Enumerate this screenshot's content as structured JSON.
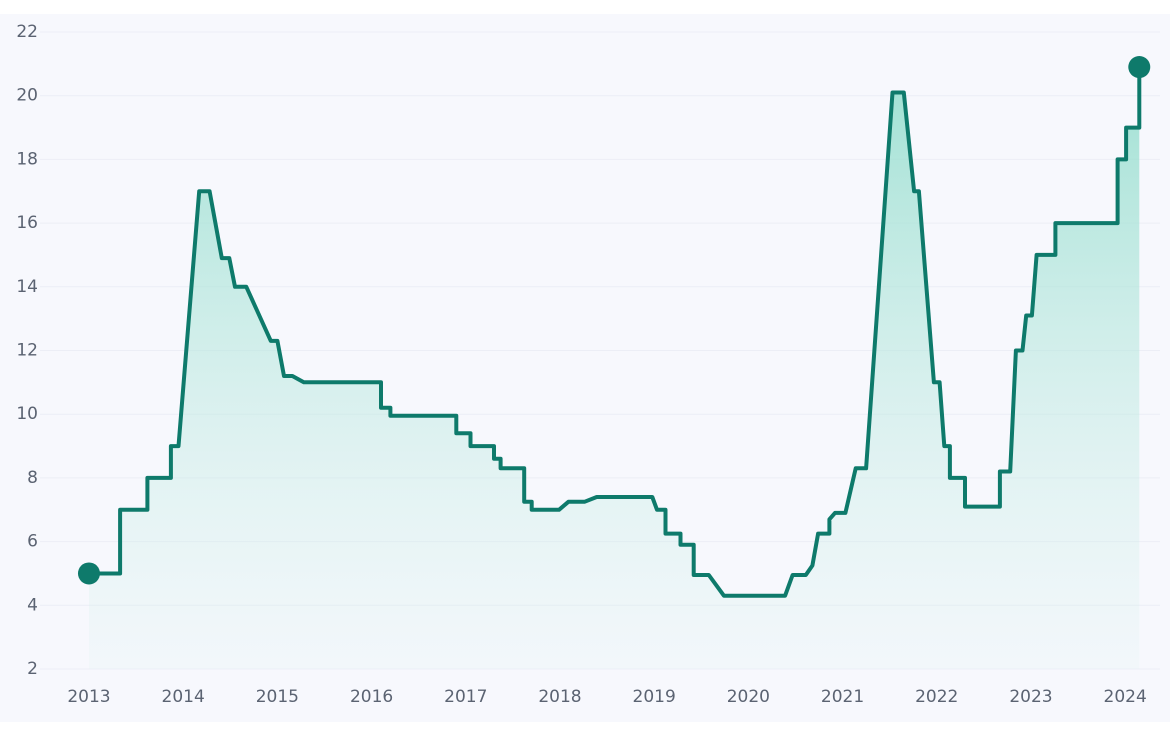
{
  "chart_data": {
    "type": "line",
    "x": [
      2013.0,
      2013.33,
      2013.33,
      2013.62,
      2013.62,
      2013.87,
      2013.87,
      2013.95,
      2014.17,
      2014.28,
      2014.41,
      2014.49,
      2014.55,
      2014.67,
      2014.93,
      2015.0,
      2015.07,
      2015.16,
      2015.28,
      2016.1,
      2016.1,
      2016.2,
      2016.2,
      2016.9,
      2016.9,
      2017.05,
      2017.05,
      2017.3,
      2017.3,
      2017.37,
      2017.37,
      2017.62,
      2017.62,
      2017.7,
      2017.7,
      2017.99,
      2018.09,
      2018.26,
      2018.39,
      2018.98,
      2019.03,
      2019.12,
      2019.12,
      2019.28,
      2019.28,
      2019.42,
      2019.42,
      2019.58,
      2019.74,
      2020.39,
      2020.47,
      2020.61,
      2020.68,
      2020.74,
      2020.86,
      2020.86,
      2020.92,
      2021.03,
      2021.14,
      2021.25,
      2021.53,
      2021.65,
      2021.76,
      2021.81,
      2021.97,
      2022.03,
      2022.08,
      2022.14,
      2022.14,
      2022.3,
      2022.3,
      2022.67,
      2022.67,
      2022.78,
      2022.84,
      2022.91,
      2022.95,
      2023.01,
      2023.06,
      2023.26,
      2023.26,
      2023.92,
      2023.92,
      2024.01,
      2024.01,
      2024.15,
      2024.15
    ],
    "series": [
      {
        "color": "#0e7a6b",
        "values": [
          5.0,
          5.0,
          7.0,
          7.0,
          8.0,
          8.0,
          9.0,
          9.0,
          17.0,
          17.0,
          14.9,
          14.9,
          14.0,
          14.0,
          12.3,
          12.3,
          11.2,
          11.2,
          11.0,
          11.0,
          10.2,
          10.2,
          9.95,
          9.95,
          9.4,
          9.4,
          9.0,
          9.0,
          8.6,
          8.6,
          8.3,
          8.3,
          7.25,
          7.25,
          7.0,
          7.0,
          7.25,
          7.25,
          7.4,
          7.4,
          7.0,
          7.0,
          6.25,
          6.25,
          5.9,
          5.9,
          4.95,
          4.95,
          4.3,
          4.3,
          4.95,
          4.95,
          5.25,
          6.25,
          6.25,
          6.7,
          6.9,
          6.9,
          8.3,
          8.3,
          20.1,
          20.1,
          17.0,
          17.0,
          11.0,
          11.0,
          9.0,
          9.0,
          8.0,
          8.0,
          7.1,
          7.1,
          8.2,
          8.2,
          12.0,
          12.0,
          13.1,
          13.1,
          15.0,
          15.0,
          16.0,
          16.0,
          18.0,
          18.0,
          19.0,
          19.0,
          20.9
        ]
      }
    ],
    "xlim": [
      2012.48,
      2024.37
    ],
    "xticks": [
      2013,
      2014,
      2015,
      2016,
      2017,
      2018,
      2019,
      2020,
      2021,
      2022,
      2023,
      2024
    ],
    "ylim": [
      2,
      22
    ],
    "yticks": [
      2,
      4,
      6,
      8,
      10,
      12,
      14,
      16,
      18,
      20,
      22
    ],
    "grid": true
  }
}
